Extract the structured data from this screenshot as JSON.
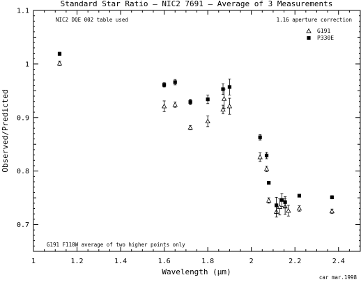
{
  "chart_data": {
    "type": "scatter",
    "title": "Standard Star Ratio — NIC2 7691 — Average of 3 Measurements",
    "xlabel": "Wavelength (μm)",
    "ylabel": "Observed/Predicted",
    "xlim": [
      1.0,
      2.5
    ],
    "ylim": [
      0.65,
      1.1
    ],
    "x_ticks": [
      1.0,
      1.2,
      1.4,
      1.6,
      1.8,
      2.0,
      2.2,
      2.4
    ],
    "x_tick_labels": [
      "1",
      "1.2",
      "1.4",
      "1.6",
      "1.8",
      "2",
      "2.2",
      "2.4"
    ],
    "y_ticks": [
      0.7,
      0.8,
      0.9,
      1.0,
      1.1
    ],
    "y_tick_labels": [
      "0.7",
      "0.8",
      "0.9",
      "1",
      "1.1"
    ],
    "grid": false,
    "legend_position": "top-right",
    "annotations": {
      "top_left": "NIC2 DQE 002 table used",
      "top_right": "1.16 aperture correction",
      "bottom_left": "G191 F110W average of two higher points only",
      "footer": "car mar.1998"
    },
    "series": [
      {
        "name": "G191",
        "marker": "open-triangle",
        "points": [
          {
            "x": 1.12,
            "y": 1.001,
            "err": 0.004
          },
          {
            "x": 1.6,
            "y": 0.921,
            "err": 0.01
          },
          {
            "x": 1.65,
            "y": 0.924,
            "err": 0.005
          },
          {
            "x": 1.72,
            "y": 0.881,
            "err": 0.004
          },
          {
            "x": 1.8,
            "y": 0.893,
            "err": 0.01
          },
          {
            "x": 1.87,
            "y": 0.915,
            "err": 0.008
          },
          {
            "x": 1.875,
            "y": 0.935,
            "err": 0.018
          },
          {
            "x": 1.9,
            "y": 0.921,
            "err": 0.015
          },
          {
            "x": 2.04,
            "y": 0.826,
            "err": 0.008
          },
          {
            "x": 2.07,
            "y": 0.804,
            "err": 0.005
          },
          {
            "x": 2.08,
            "y": 0.745,
            "err": 0.005
          },
          {
            "x": 2.115,
            "y": 0.724,
            "err": 0.01
          },
          {
            "x": 2.13,
            "y": 0.733,
            "err": 0.015
          },
          {
            "x": 2.155,
            "y": 0.734,
            "err": 0.015
          },
          {
            "x": 2.17,
            "y": 0.726,
            "err": 0.01
          },
          {
            "x": 2.22,
            "y": 0.73,
            "err": 0.005
          },
          {
            "x": 2.37,
            "y": 0.725,
            "err": 0.004
          }
        ]
      },
      {
        "name": "P330E",
        "marker": "filled-square",
        "points": [
          {
            "x": 1.12,
            "y": 1.019,
            "err": 0.003
          },
          {
            "x": 1.6,
            "y": 0.961,
            "err": 0.004
          },
          {
            "x": 1.65,
            "y": 0.966,
            "err": 0.005
          },
          {
            "x": 1.72,
            "y": 0.929,
            "err": 0.005
          },
          {
            "x": 1.8,
            "y": 0.934,
            "err": 0.008
          },
          {
            "x": 1.87,
            "y": 0.953,
            "err": 0.01
          },
          {
            "x": 1.9,
            "y": 0.957,
            "err": 0.015
          },
          {
            "x": 2.04,
            "y": 0.863,
            "err": 0.005
          },
          {
            "x": 2.07,
            "y": 0.829,
            "err": 0.006
          },
          {
            "x": 2.08,
            "y": 0.778,
            "err": 0.002
          },
          {
            "x": 2.115,
            "y": 0.736,
            "err": 0.015
          },
          {
            "x": 2.14,
            "y": 0.746,
            "err": 0.012
          },
          {
            "x": 2.155,
            "y": 0.742,
            "err": 0.01
          },
          {
            "x": 2.22,
            "y": 0.754,
            "err": 0.002
          },
          {
            "x": 2.37,
            "y": 0.751,
            "err": 0.003
          }
        ]
      }
    ]
  }
}
